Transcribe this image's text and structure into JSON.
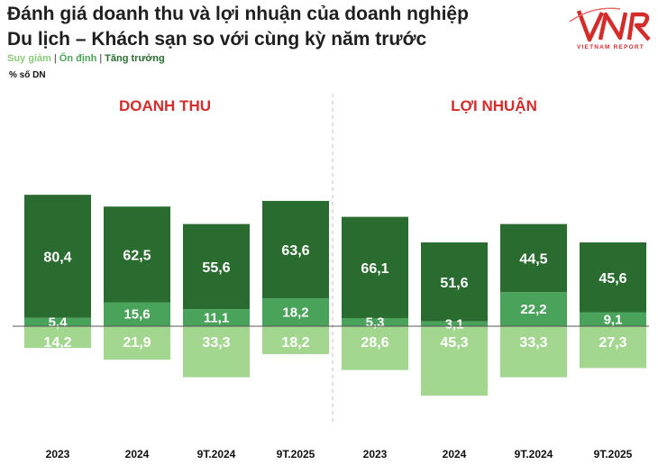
{
  "header": {
    "title_line1": "Đánh giá doanh thu và lợi nhuận của doanh nghiệp",
    "title_line2": "Du lịch – Khách sạn so với cùng kỳ năm trước",
    "unit": "% số DN",
    "logo_text": "VNR",
    "logo_subtitle": "VIETNAM REPORT"
  },
  "legend": {
    "items": [
      {
        "label": "Suy giảm",
        "color": "#8ccb78"
      },
      {
        "label": "Ổn định",
        "color": "#4aa35a"
      },
      {
        "label": "Tăng trưởng",
        "color": "#2a6b2f"
      }
    ]
  },
  "colors": {
    "growth": "#2a6b2f",
    "stable": "#4aa35a",
    "decline": "#a3d68f",
    "panel_title": "#d42b2b",
    "label": "#ffffff"
  },
  "chart_data": [
    {
      "type": "bar",
      "title": "DOANH THU",
      "categories": [
        "2023",
        "2024",
        "9T.2024",
        "9T.2025"
      ],
      "series": [
        {
          "name": "Tăng trưởng",
          "values": [
            80.4,
            62.5,
            55.6,
            63.6
          ]
        },
        {
          "name": "Ổn định",
          "values": [
            5.4,
            15.6,
            11.1,
            18.2
          ]
        },
        {
          "name": "Suy giảm",
          "values": [
            14.2,
            21.9,
            33.3,
            18.2
          ]
        }
      ]
    },
    {
      "type": "bar",
      "title": "LỢI NHUẬN",
      "categories": [
        "2023",
        "2024",
        "9T.2024",
        "9T.2025"
      ],
      "series": [
        {
          "name": "Tăng trưởng",
          "values": [
            66.1,
            51.6,
            44.5,
            45.6
          ]
        },
        {
          "name": "Ổn định",
          "values": [
            5.3,
            3.1,
            22.2,
            9.1
          ]
        },
        {
          "name": "Suy giảm",
          "values": [
            28.6,
            45.3,
            33.3,
            27.3
          ]
        }
      ]
    }
  ]
}
